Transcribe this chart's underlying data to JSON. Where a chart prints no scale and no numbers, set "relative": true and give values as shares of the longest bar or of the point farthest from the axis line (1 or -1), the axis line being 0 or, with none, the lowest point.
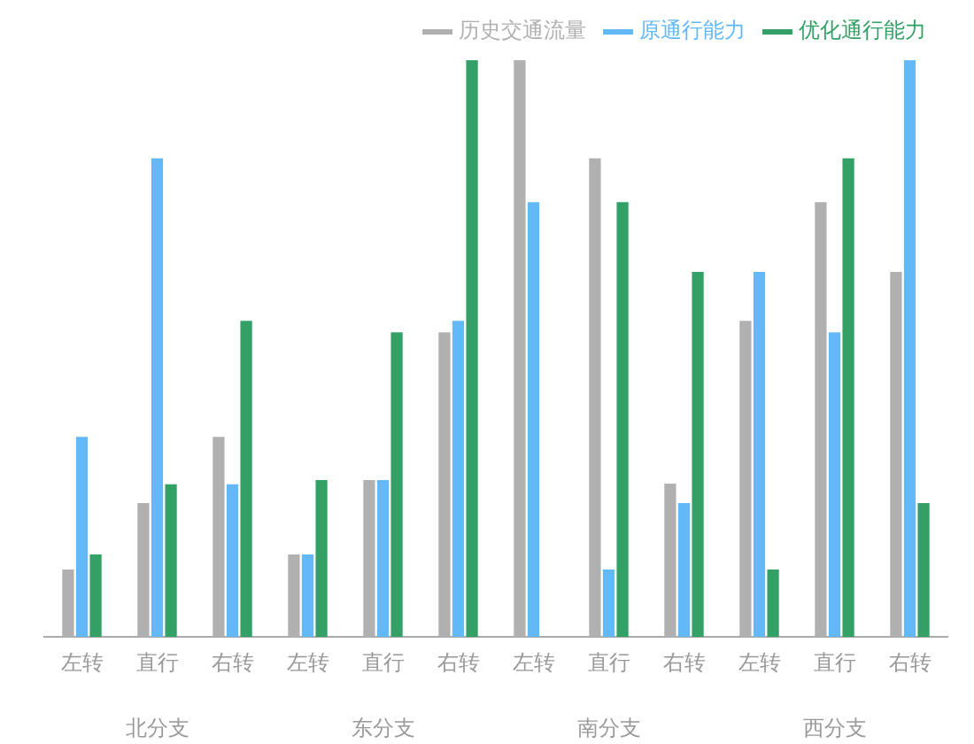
{
  "chart_data": {
    "type": "bar",
    "relative": true,
    "legend": "top right",
    "grid": false,
    "categories": [
      "左转",
      "直行",
      "右转",
      "左转",
      "直行",
      "右转",
      "左转",
      "直行",
      "右转",
      "左转",
      "直行",
      "右转"
    ],
    "annotations": [
      "北分支",
      "东分支",
      "南分支",
      "西分支"
    ],
    "series": [
      {
        "name": "历史交通流量",
        "color": "#b0b0b0",
        "values": [
          0.117,
          0.232,
          0.347,
          0.143,
          0.272,
          0.528,
          1,
          0.83,
          0.266,
          0.548,
          0.754,
          0.633
        ]
      },
      {
        "name": "原通行能力",
        "color": "#63b8f8",
        "values": [
          0.347,
          0.83,
          0.265,
          0.143,
          0.272,
          0.548,
          0.754,
          0.117,
          0.232,
          0.633,
          0.528,
          1
        ]
      },
      {
        "name": "优化通行能力",
        "color": "#33a065",
        "values": [
          0.143,
          0.265,
          0.548,
          0.272,
          0.528,
          1,
          null,
          0.754,
          0.633,
          0.117,
          0.83,
          0.232
        ]
      }
    ]
  }
}
